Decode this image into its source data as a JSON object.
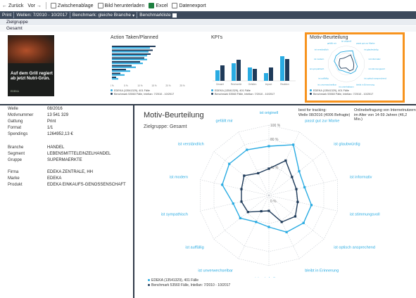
{
  "toolbar": {
    "back": "Zurück",
    "forward": "Vor",
    "clipboard": "Zwischenablage",
    "download_image": "Bild herunterladen",
    "excel": "Excel",
    "export": "Datenexport"
  },
  "filterbar": {
    "print": "Print",
    "period": "Wellen: 7/2010 - 10/2017",
    "benchmark": "Benchmark: gleiche Branche",
    "benchmark_list": "Benchmarkliste"
  },
  "subrow": {
    "label": "Zielgruppe",
    "value": "Gesamt"
  },
  "ad": {
    "headline": "Auf dem Grill regiert ab jetzt Nutri-Grün.",
    "logo": "EDEKA"
  },
  "tiles": {
    "action": {
      "title": "Action Taken/Planned",
      "legend": [
        "EDEKA (13541329), 401 Fälle",
        "Benchmark 53560 Fälle, Intellan: 7/2010 - 10/2017"
      ],
      "bars": [
        [
          62,
          54
        ],
        [
          58,
          52
        ],
        [
          55,
          50
        ],
        [
          46,
          50
        ],
        [
          40,
          44
        ],
        [
          28,
          34
        ],
        [
          20,
          26
        ],
        [
          12,
          18
        ],
        [
          6,
          9
        ]
      ],
      "axis": [
        "0 %",
        "5 %",
        "10 %",
        "15 %",
        "20 %",
        "25 %"
      ]
    },
    "kpi": {
      "title": "KPI's",
      "legend": [
        "EDEKA (13541329), 401 Fälle",
        "Benchmark 53560 Fälle, Intellan: 7/2010 - 10/2017"
      ],
      "groups": [
        "Gesamt",
        "Reichweite",
        "Gefallen",
        "Impact",
        "Reaktion"
      ],
      "bars": [
        [
          30,
          44
        ],
        [
          50,
          60
        ],
        [
          38,
          34
        ],
        [
          22,
          38
        ],
        [
          70,
          62
        ]
      ]
    },
    "motiv": {
      "title": "Motiv-Beurteilung",
      "legend": [
        "EDEKA (13541329), 401 Fälle",
        "Benchmark 53560 Fälle, Intellan: 7/2010 - 10/2017"
      ]
    }
  },
  "info": {
    "rows1": [
      {
        "k": "Welle",
        "v": "08/2016"
      },
      {
        "k": "Motivnummer",
        "v": "13 541 329"
      },
      {
        "k": "Gattung",
        "v": "Print"
      },
      {
        "k": "Format",
        "v": "1/1"
      },
      {
        "k": "Spendings",
        "v": "1264952,13 €"
      }
    ],
    "rows2": [
      {
        "k": "Branche",
        "v": "HANDEL"
      },
      {
        "k": "Segment",
        "v": "LEBENSMITTELEINZELHANDEL"
      },
      {
        "k": "Gruppe",
        "v": "SUPERMAERKTE"
      }
    ],
    "rows3": [
      {
        "k": "Firma",
        "v": "EDEKA ZENTRALE, HH"
      },
      {
        "k": "Marke",
        "v": "EDEKA"
      },
      {
        "k": "Produkt",
        "v": "EDEKA EINKAUFS-GENOSSENSCHAFT"
      }
    ]
  },
  "main": {
    "title": "Motiv-Beurteilung",
    "subtitle": "Zielgruppe: Gesamt",
    "note_left": [
      "best for tracking:",
      "Welle 08/2016 (4006 Befragte)"
    ],
    "note_right": [
      "Onlinebefragung von Internetnutzern",
      "im Alter von 14-59 Jahren (46,2 Mio.)"
    ],
    "legend": [
      "EDEKA (13541329), 401 Fälle",
      "Benchmark 53560 Fälle, Intellan: 7/2010 - 10/2017"
    ]
  },
  "chart_data": {
    "type": "radar",
    "title": "Motiv-Beurteilung",
    "axes": [
      "ist originell",
      "passt gut zur Marke",
      "ist glaubwürdig",
      "ist informativ",
      "ist stimmungsvoll",
      "ist optisch ansprechend",
      "bleibt in Erinnerung",
      "ist unterhaltsam",
      "ist unverwechselbar",
      "ist auffällig",
      "ist sympathisch",
      "ist modern",
      "ist verständlich",
      "gefällt mir"
    ],
    "ticks": [
      "0 %",
      "40 %",
      "80 %",
      "100 %"
    ],
    "rlim": [
      0,
      100
    ],
    "series": [
      {
        "name": "EDEKA (13541329), 401 Fälle",
        "color": "#29abe2",
        "values": [
          70,
          80,
          55,
          52,
          62,
          63,
          58,
          45,
          42,
          52,
          52,
          68,
          72,
          72
        ]
      },
      {
        "name": "Benchmark 53560 Fälle, Intellan: 7/2010 - 10/2017",
        "color": "#1f3b5a",
        "values": [
          38,
          55,
          42,
          40,
          42,
          48,
          42,
          22,
          25,
          38,
          40,
          40,
          45,
          35
        ]
      }
    ],
    "colors": {
      "accent": "#29abe2",
      "benchmark": "#1f3b5a",
      "highlight": "#f7931e",
      "bar_dark": "#2f3a48"
    }
  }
}
